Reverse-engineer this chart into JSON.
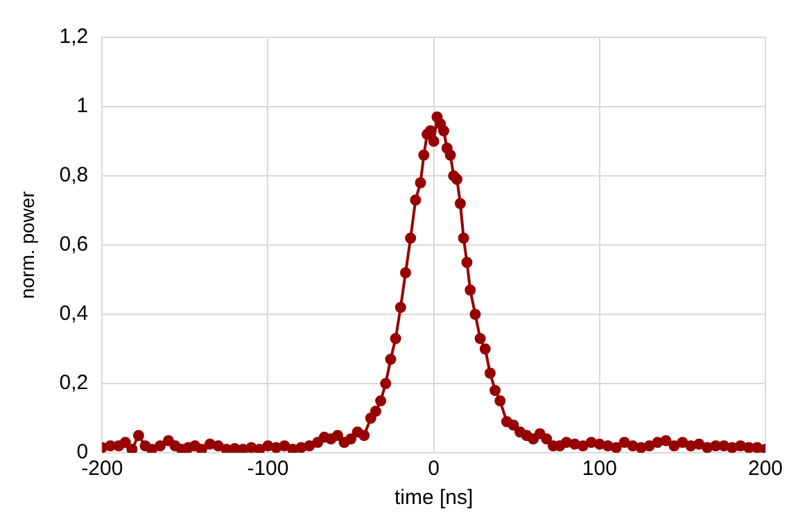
{
  "chart_data": {
    "type": "line",
    "xlabel": "time [ns]",
    "ylabel": "norm. power",
    "xlim": [
      -200,
      200
    ],
    "xticks": [
      -200,
      -100,
      0,
      100,
      200
    ],
    "ylim": [
      0,
      1.2
    ],
    "yticks": [
      0,
      {
        "value": 0.2,
        "label": "0,2"
      },
      {
        "value": 0.4,
        "label": "0,4"
      },
      {
        "value": 0.6,
        "label": "0,6"
      },
      {
        "value": 0.8,
        "label": "0,8"
      },
      1,
      {
        "value": 1.2,
        "label": "1,2"
      }
    ],
    "grid": true,
    "legend": false,
    "marker": "circle",
    "line_style": "solid",
    "series": [
      {
        "color": "#960000",
        "x": [
          -200,
          -195,
          -190,
          -186,
          -182,
          -178,
          -174,
          -170,
          -165,
          -160,
          -156,
          -152,
          -148,
          -144,
          -140,
          -135,
          -130,
          -125,
          -120,
          -115,
          -110,
          -105,
          -100,
          -95,
          -90,
          -85,
          -80,
          -75,
          -70,
          -66,
          -62,
          -58,
          -54,
          -50,
          -46,
          -42,
          -38,
          -35,
          -32,
          -29,
          -26,
          -23,
          -20,
          -17,
          -14,
          -11,
          -8,
          -6,
          -4,
          -2,
          0,
          2,
          4,
          6,
          8,
          10,
          12,
          14,
          16,
          18,
          20,
          22,
          25,
          28,
          31,
          34,
          37,
          40,
          44,
          48,
          52,
          56,
          60,
          64,
          68,
          72,
          76,
          80,
          85,
          90,
          95,
          100,
          105,
          110,
          115,
          120,
          125,
          130,
          135,
          140,
          145,
          150,
          155,
          160,
          165,
          170,
          175,
          180,
          185,
          190,
          195,
          200
        ],
        "values": [
          0.015,
          0.02,
          0.02,
          0.03,
          0.01,
          0.05,
          0.02,
          0.01,
          0.02,
          0.035,
          0.02,
          0.01,
          0.015,
          0.02,
          0.01,
          0.025,
          0.02,
          0.01,
          0.012,
          0.01,
          0.015,
          0.01,
          0.02,
          0.015,
          0.02,
          0.01,
          0.015,
          0.02,
          0.03,
          0.045,
          0.04,
          0.05,
          0.03,
          0.04,
          0.06,
          0.05,
          0.1,
          0.12,
          0.15,
          0.2,
          0.27,
          0.33,
          0.42,
          0.52,
          0.62,
          0.73,
          0.78,
          0.86,
          0.92,
          0.93,
          0.9,
          0.97,
          0.95,
          0.93,
          0.88,
          0.86,
          0.8,
          0.79,
          0.72,
          0.62,
          0.55,
          0.47,
          0.4,
          0.33,
          0.3,
          0.23,
          0.18,
          0.15,
          0.09,
          0.08,
          0.06,
          0.05,
          0.04,
          0.055,
          0.04,
          0.02,
          0.02,
          0.03,
          0.025,
          0.02,
          0.03,
          0.025,
          0.02,
          0.015,
          0.03,
          0.02,
          0.015,
          0.02,
          0.03,
          0.035,
          0.02,
          0.03,
          0.02,
          0.025,
          0.015,
          0.02,
          0.02,
          0.015,
          0.02,
          0.015,
          0.015,
          0.01
        ]
      }
    ]
  }
}
